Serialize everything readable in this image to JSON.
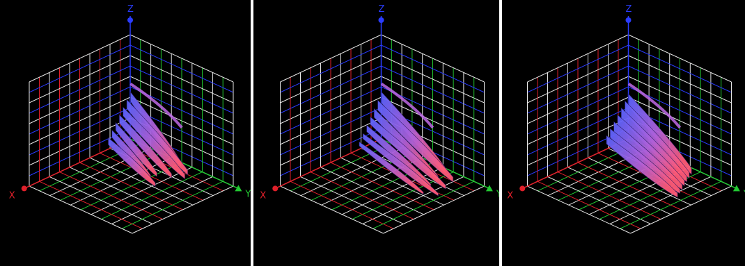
{
  "colors": {
    "background": "#000000",
    "separator": "#ffffff",
    "x_axis": "#e0202a",
    "y_axis": "#22c832",
    "z_axis": "#2a3cff",
    "grid_white": "#e6e6e6",
    "surface_blue": "#5a64ff",
    "surface_pink": "#ff5a78"
  },
  "axes": {
    "x": "X",
    "y": "Y",
    "z": "Z"
  },
  "chart_data": [
    {
      "type": "surface",
      "title": "",
      "axes": [
        "X",
        "Y",
        "Z"
      ],
      "grid": true,
      "variant": "layered-fins"
    },
    {
      "type": "surface",
      "title": "",
      "axes": [
        "X",
        "Y",
        "Z"
      ],
      "grid": true,
      "variant": "spiky-fins"
    },
    {
      "type": "surface",
      "title": "",
      "axes": [
        "X",
        "Y",
        "Z"
      ],
      "grid": true,
      "variant": "smooth-sheet"
    }
  ]
}
